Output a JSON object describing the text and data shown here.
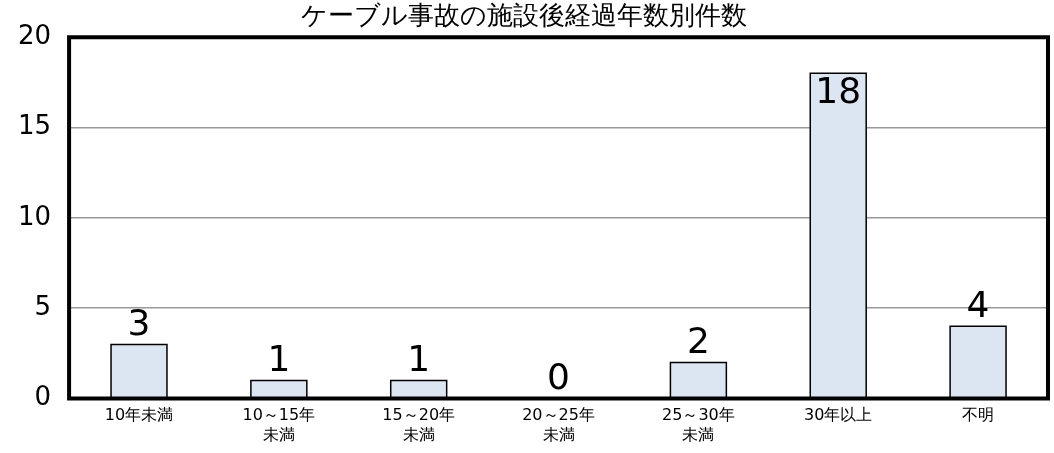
{
  "chart_data": {
    "type": "bar",
    "title": "ケーブル事故の施設後経過年数別件数",
    "categories": [
      "10年未満",
      "10～15年未満",
      "15～20年未満",
      "20～25年未満",
      "25～30年未満",
      "30年以上",
      "不明"
    ],
    "values": [
      3,
      1,
      1,
      0,
      2,
      18,
      4
    ],
    "color": "#dce6f2",
    "ylim": [
      0,
      20
    ],
    "yticks": [
      0,
      5,
      10,
      15,
      20
    ],
    "grid": "y",
    "data_labels": true,
    "legend": false
  }
}
